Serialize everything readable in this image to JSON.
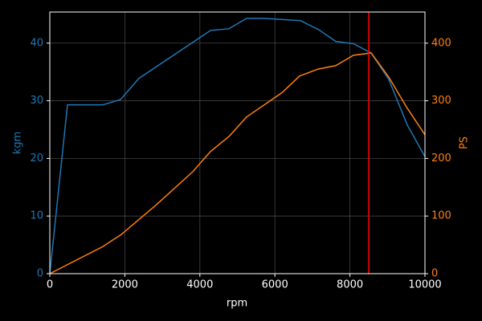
{
  "chart_data": {
    "type": "line",
    "xlabel": "rpm",
    "ylabel": "kgm",
    "y2label": "PS",
    "xlim": [
      0,
      10000
    ],
    "xticks": [
      0,
      2000,
      4000,
      6000,
      8000,
      10000
    ],
    "ylim": [
      0,
      45.4
    ],
    "yticks": [
      0,
      10,
      20,
      30,
      40
    ],
    "y2lim": [
      0,
      454
    ],
    "y2ticks": [
      0,
      100,
      200,
      300,
      400
    ],
    "grid": true,
    "series": [
      {
        "name": "kgm",
        "color": "#1f77b4",
        "x": [
          0,
          471,
          1413,
          1884,
          2377,
          4283,
          4775,
          5246,
          5717,
          6681,
          7152,
          7623,
          8094,
          8565,
          9036,
          9529,
          10000
        ],
        "values": [
          0,
          29.3,
          29.3,
          30.2,
          33.9,
          42.2,
          42.5,
          44.3,
          44.3,
          43.9,
          42.4,
          40.3,
          39.9,
          38.3,
          33.7,
          25.8,
          20.3
        ]
      },
      {
        "name": "PS",
        "color": "#ff7f0e",
        "axis": "y2",
        "x": [
          0,
          1413,
          1906,
          2848,
          3812,
          4283,
          4775,
          5246,
          5717,
          6188,
          6660,
          7152,
          7623,
          8094,
          8565,
          9036,
          9529,
          10000
        ],
        "values": [
          0,
          47,
          68,
          120,
          177,
          212,
          238,
          272,
          293,
          314,
          343,
          355,
          361,
          379,
          383,
          341,
          287,
          241
        ]
      }
    ],
    "vline": {
      "x": 8500,
      "color": "#ff0000"
    }
  }
}
